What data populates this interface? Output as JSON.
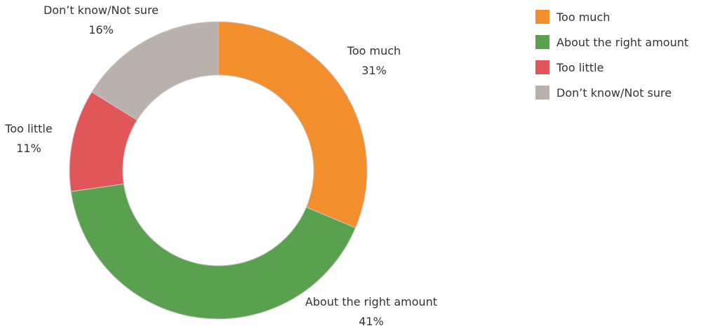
{
  "chart_data": {
    "type": "pie",
    "variant": "donut",
    "title": "",
    "categories": [
      "Too much",
      "About the right amount",
      "Too little",
      "Don’t know/Not sure"
    ],
    "values": [
      31,
      41,
      11,
      16
    ],
    "labels": [
      "31%",
      "41%",
      "11%",
      "16%"
    ],
    "unit": "%",
    "colors": [
      "#F28E2B",
      "#59A14F",
      "#E15759",
      "#BAB0AC"
    ],
    "legend_position": "top-right",
    "start_angle": "12 o'clock, clockwise"
  }
}
